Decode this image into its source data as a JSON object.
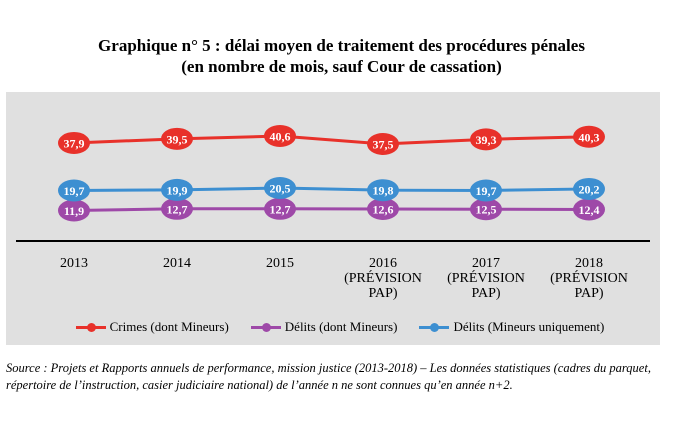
{
  "title_line1": "Graphique n° 5 : délai moyen de traitement des procédures pénales",
  "title_line2": "(en nombre de mois, sauf Cour de cassation)",
  "source": "Source : Projets et Rapports annuels de performance, mission justice (2013-2018) – Les données statistiques (cadres du parquet, répertoire de l’instruction, casier judiciaire national) de l’année n ne sont connues qu’en année n+2.",
  "chart_data": {
    "type": "line",
    "categories": [
      [
        "2013"
      ],
      [
        "2014"
      ],
      [
        "2015"
      ],
      [
        "2016",
        "(PRÉVISION",
        "PAP)"
      ],
      [
        "2017",
        "(PRÉVISION",
        "PAP)"
      ],
      [
        "2018",
        "(PRÉVISION",
        "PAP)"
      ]
    ],
    "series": [
      {
        "name": "Crimes (dont Mineurs)",
        "color": "#e8312a",
        "values": [
          37.9,
          39.5,
          40.6,
          37.5,
          39.3,
          40.3
        ],
        "labels": [
          "37,9",
          "39,5",
          "40,6",
          "37,5",
          "39,3",
          "40,3"
        ]
      },
      {
        "name": "Délits (dont Mineurs)",
        "color": "#9e49a8",
        "values": [
          11.9,
          12.7,
          12.7,
          12.6,
          12.5,
          12.4
        ],
        "labels": [
          "11,9",
          "12,7",
          "12,7",
          "12,6",
          "12,5",
          "12,4"
        ]
      },
      {
        "name": "Délits (Mineurs uniquement)",
        "color": "#3d8fd1",
        "values": [
          19.7,
          19.9,
          20.5,
          19.8,
          19.7,
          20.2
        ],
        "labels": [
          "19,7",
          "19,9",
          "20,5",
          "19,8",
          "19,7",
          "20,2"
        ]
      }
    ],
    "grid": false,
    "legend_position": "bottom"
  }
}
